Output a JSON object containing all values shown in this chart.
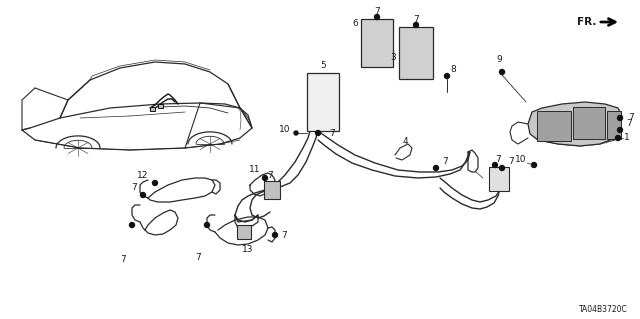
{
  "background_color": "#ffffff",
  "diagram_code": "TA04B3720C",
  "figsize": [
    6.4,
    3.19
  ],
  "dpi": 100,
  "text_color": "#1a1a1a",
  "line_color": "#2a2a2a",
  "font_size_label": 6.5,
  "font_size_code": 5.5,
  "fr_text": "FR.",
  "car_color": "#555555",
  "part_fill": "#d8d8d8",
  "part_edge": "#222222"
}
